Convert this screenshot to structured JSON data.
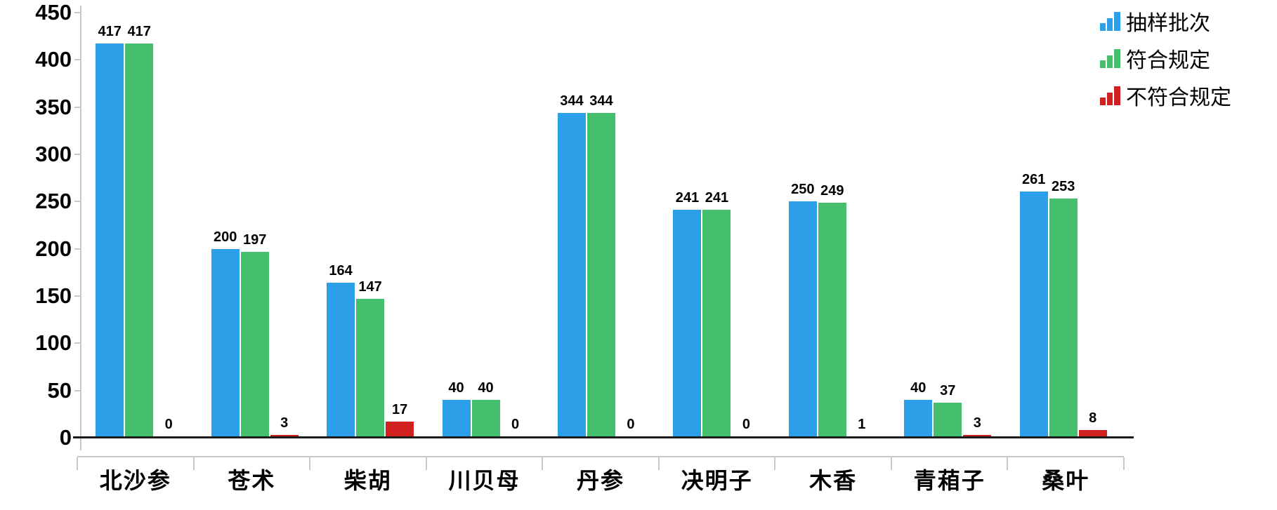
{
  "chart_data": {
    "type": "bar",
    "categories": [
      "北沙参",
      "苍术",
      "柴胡",
      "川贝母",
      "丹参",
      "决明子",
      "木香",
      "青葙子",
      "桑叶"
    ],
    "series": [
      {
        "name": "抽样批次",
        "color": "#2BA0E8",
        "values": [
          417,
          200,
          164,
          40,
          344,
          241,
          250,
          40,
          261
        ]
      },
      {
        "name": "符合规定",
        "color": "#43BF6E",
        "values": [
          417,
          197,
          147,
          40,
          344,
          241,
          249,
          37,
          253
        ]
      },
      {
        "name": "不符合规定",
        "color": "#D02020",
        "values": [
          0,
          3,
          17,
          0,
          0,
          0,
          1,
          3,
          8
        ]
      }
    ],
    "title": "",
    "xlabel": "",
    "ylabel": "",
    "ylim": [
      0,
      450
    ],
    "yticks": [
      0,
      50,
      100,
      150,
      200,
      250,
      300,
      350,
      400,
      450
    ],
    "grid": false,
    "legend_position": "top-right",
    "value_labels": true,
    "colors": {
      "axis_line": "#c8c8c8",
      "baseline": "#1a1a1a",
      "label_text": "#000000"
    }
  }
}
